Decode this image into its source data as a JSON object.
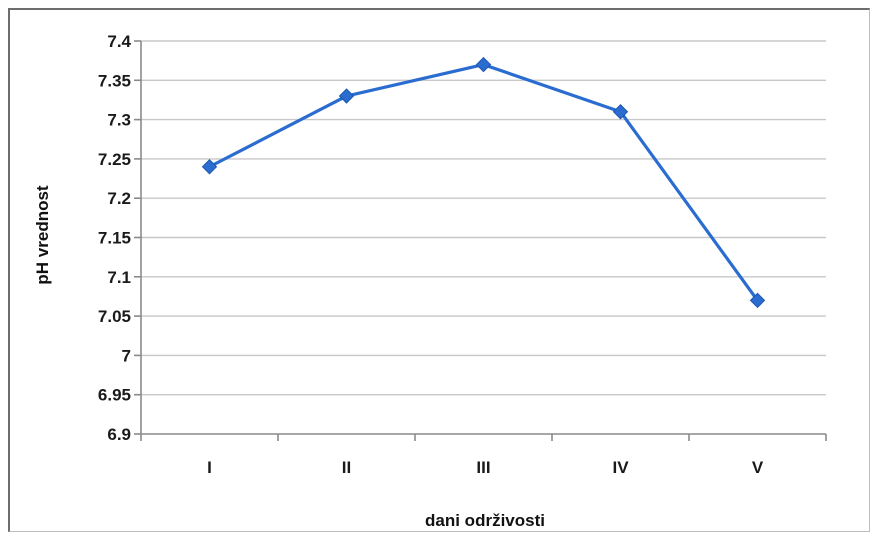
{
  "chart_data": {
    "type": "line",
    "categories": [
      "I",
      "II",
      "III",
      "IV",
      "V"
    ],
    "series": [
      {
        "values": [
          7.24,
          7.33,
          7.37,
          7.31,
          7.07
        ]
      }
    ],
    "xlabel": "dani održivosti",
    "ylabel": "pH vrednost",
    "ylim": [
      6.9,
      7.4
    ],
    "yticks": [
      "6.9",
      "6.95",
      "7",
      "7.05",
      "7.1",
      "7.15",
      "7.2",
      "7.25",
      "7.3",
      "7.35",
      "7.4"
    ],
    "grid": true,
    "legend": "none",
    "marker": "diamond",
    "line_color": "#2a6ccf"
  }
}
